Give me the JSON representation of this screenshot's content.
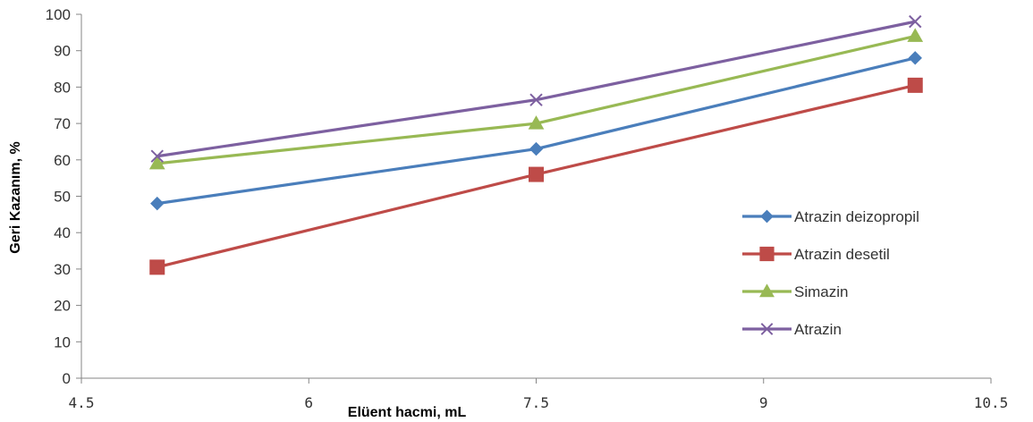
{
  "chart_data": {
    "type": "line",
    "title": "",
    "xlabel": "Elüent hacmi, mL",
    "ylabel": "Geri Kazanım, %",
    "xlim": [
      4.5,
      10.5
    ],
    "ylim": [
      0,
      100
    ],
    "xticks": [
      "4.5",
      "6",
      "7.5",
      "9",
      "10.5"
    ],
    "xtick_values": [
      4.5,
      6,
      7.5,
      9,
      10.5
    ],
    "yticks": [
      0,
      10,
      20,
      30,
      40,
      50,
      60,
      70,
      80,
      90,
      100
    ],
    "grid": false,
    "legend_position": "right",
    "x": [
      5,
      7.5,
      10
    ],
    "series": [
      {
        "name": "Atrazin deizopropil",
        "values": [
          48,
          63,
          88
        ],
        "color": "#4a7ebb",
        "marker": "diamond"
      },
      {
        "name": "Atrazin desetil",
        "values": [
          30.5,
          56,
          80.5
        ],
        "color": "#be4b48",
        "marker": "square"
      },
      {
        "name": "Simazin",
        "values": [
          59,
          70,
          94
        ],
        "color": "#98b954",
        "marker": "triangle"
      },
      {
        "name": "Atrazin",
        "values": [
          61,
          76.5,
          98
        ],
        "color": "#7d60a0",
        "marker": "x"
      }
    ]
  }
}
